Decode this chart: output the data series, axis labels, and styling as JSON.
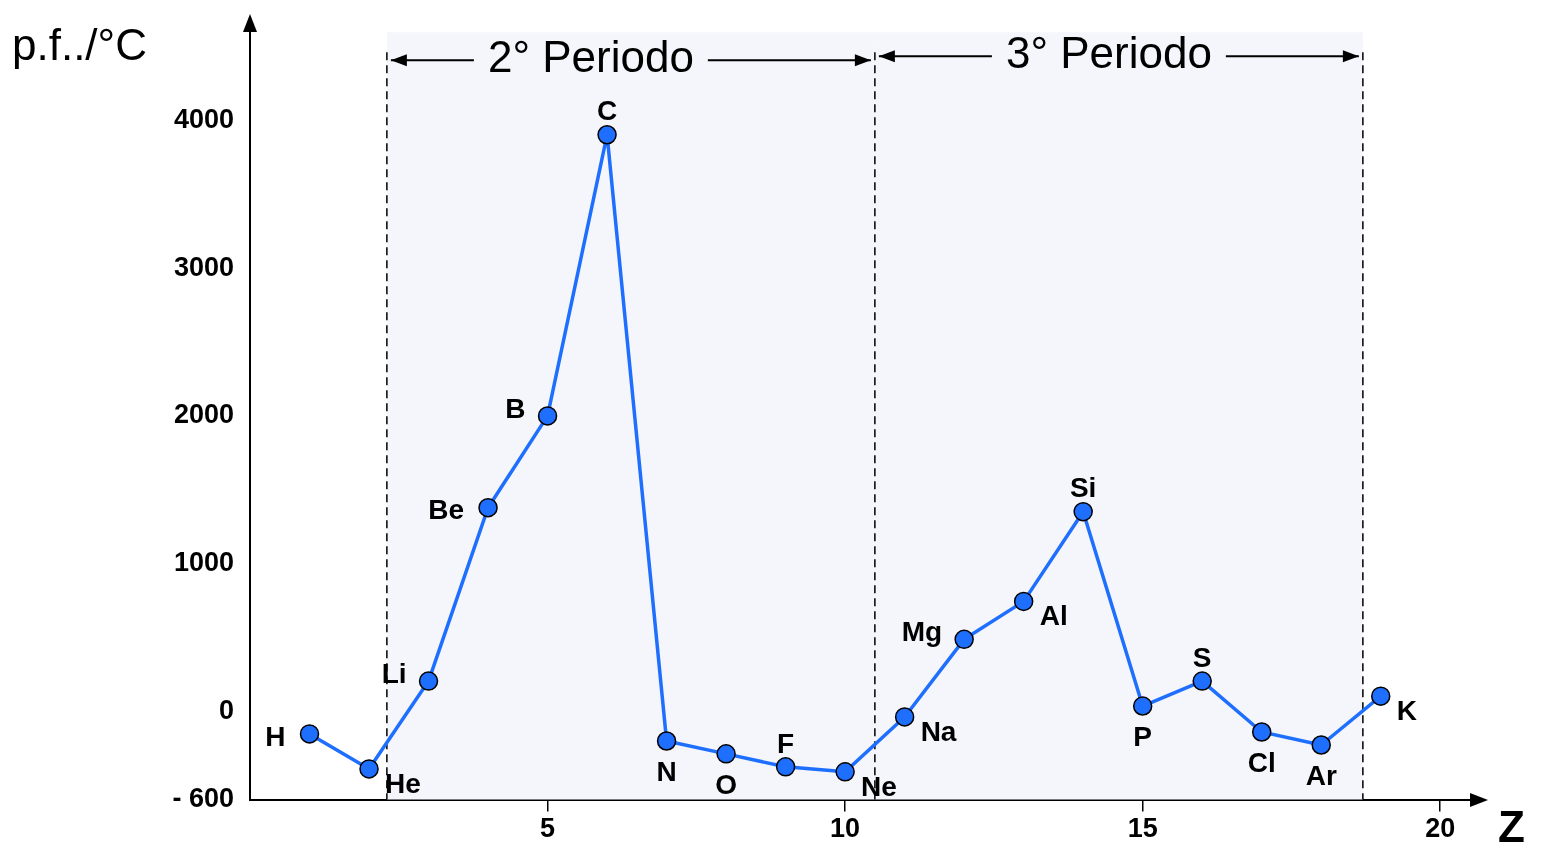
{
  "chart_data": {
    "type": "line",
    "ylabel": "p.f../°C",
    "xlabel": "Z",
    "x": [
      1,
      2,
      3,
      4,
      5,
      6,
      7,
      8,
      9,
      10,
      11,
      12,
      13,
      14,
      15,
      16,
      17,
      18,
      19
    ],
    "series": [
      {
        "color": "#1f6fff",
        "values": [
          -155,
          -392,
          203,
          1378,
          2000,
          3905,
          -203,
          -290,
          -378,
          -412,
          -40,
          486,
          743,
          1351,
          34,
          203,
          -142,
          -230,
          101
        ]
      }
    ],
    "xlim": [
      0,
      20.5
    ],
    "xticks": [
      5,
      10,
      15,
      20
    ],
    "ylim": [
      -600,
      4600
    ],
    "yticks": [
      {
        "value": -600,
        "label": "- 600"
      },
      0,
      1000,
      2000,
      3000,
      4000
    ],
    "grid": false,
    "legend": false,
    "marker": "circle",
    "line_style": "solid",
    "ref_lines": [
      {
        "axis": "x",
        "value": 2.3,
        "line_style": "dashed",
        "color": "#000000"
      },
      {
        "axis": "x",
        "value": 10.5,
        "line_style": "dashed",
        "color": "#000000"
      },
      {
        "axis": "x",
        "value": 18.7,
        "line_style": "dashed",
        "color": "#000000"
      }
    ],
    "bands": [
      {
        "axis": "x",
        "from": 2.3,
        "to": 10.5,
        "label": "2° Periodo",
        "color": "#f4f6fb"
      },
      {
        "axis": "x",
        "from": 10.5,
        "to": 18.7,
        "label": "3° Periodo",
        "color": "#f4f6fb"
      }
    ],
    "annotations": [
      {
        "text": "H",
        "x": 1,
        "y": -155
      },
      {
        "text": "He",
        "x": 2,
        "y": -392
      },
      {
        "text": "Li",
        "x": 3,
        "y": 203
      },
      {
        "text": "Be",
        "x": 4,
        "y": 1378
      },
      {
        "text": "B",
        "x": 5,
        "y": 2000
      },
      {
        "text": "C",
        "x": 6,
        "y": 3905
      },
      {
        "text": "N",
        "x": 7,
        "y": -203
      },
      {
        "text": "O",
        "x": 8,
        "y": -290
      },
      {
        "text": "F",
        "x": 9,
        "y": -378
      },
      {
        "text": "Ne",
        "x": 10,
        "y": -412
      },
      {
        "text": "Na",
        "x": 11,
        "y": -40
      },
      {
        "text": "Mg",
        "x": 12,
        "y": 486
      },
      {
        "text": "Al",
        "x": 13,
        "y": 743
      },
      {
        "text": "Si",
        "x": 14,
        "y": 1351
      },
      {
        "text": "P",
        "x": 15,
        "y": 34
      },
      {
        "text": "S",
        "x": 16,
        "y": 203
      },
      {
        "text": "Cl",
        "x": 17,
        "y": -142
      },
      {
        "text": "Ar",
        "x": 18,
        "y": -230
      },
      {
        "text": "K",
        "x": 19,
        "y": 101
      }
    ]
  }
}
